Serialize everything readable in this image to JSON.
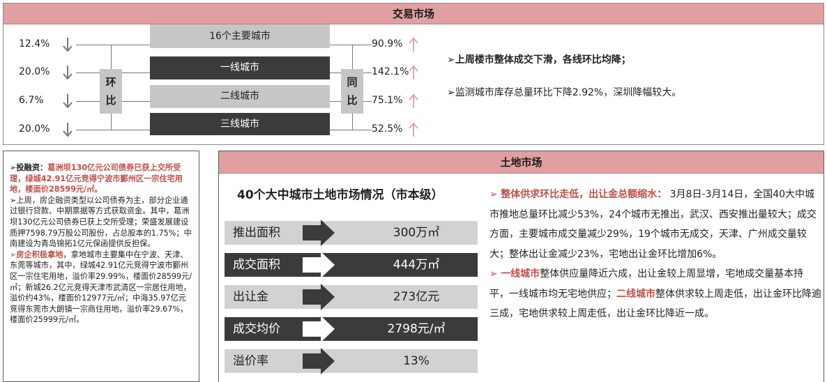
{
  "top": {
    "header": "交易市场",
    "mom_label": [
      "环",
      "比"
    ],
    "yoy_label": [
      "同",
      "比"
    ],
    "rows": [
      {
        "city": "16个主要城市",
        "mom": "12.4%",
        "yoy": "90.9%",
        "style": "light"
      },
      {
        "city": "一线城市",
        "mom": "20.0%",
        "yoy": "142.1%",
        "style": "dark"
      },
      {
        "city": "二线城市",
        "mom": "6.7%",
        "yoy": "75.1%",
        "style": "light"
      },
      {
        "city": "三线城市",
        "mom": "20.0%",
        "yoy": "52.5%",
        "style": "dark"
      }
    ],
    "notes": [
      "➢上周楼市整体成交下滑，各线环比均降；",
      "➢监测城市库存总量环比下降2.92%，深圳降幅较大。"
    ]
  },
  "news": {
    "p1_prefix": "➢投融资：",
    "p1_red": "葛洲坝130亿元公司债券已获上交所受理，绿城42.91亿元竞得宁波市鄞州区一宗住宅用地，楼面价28599元/㎡。",
    "p2": "➢上周，房企融资类型以公司债券为主，部分企业通过银行贷款、中期票据等方式获取资金。其中，葛洲坝130亿元公司债券已获上交所受理；荣盛发展建设质押7598.79万股公司股份，占总股本的1.75%；中南建设为青岛锦拓1亿元保函提供反担保。",
    "p3_red": "➢房企积极拿地",
    "p3": "，拿地城市主要集中在宁波、天津、东莞等城市，其中，绿城42.91亿元竞得宁波市鄞州区一宗住宅用地，溢价率29.99%，楼面价28599元/㎡；新城26.2亿元竞得天津市武清区一宗居住用地，溢价约43%，楼面价12977元/㎡；中海35.97亿元竞得东莞市大朗镇一宗商住用地，溢价率29.67%，楼面价25999元/㎡。"
  },
  "land": {
    "header": "土地市场",
    "title": "40个大中城市土地市场情况（市本级）",
    "rows": [
      {
        "label": "推出面积",
        "value": "300万㎡",
        "style": "light"
      },
      {
        "label": "成交面积",
        "value": "444万㎡",
        "style": "dark"
      },
      {
        "label": "出让金",
        "value": "273亿元",
        "style": "light"
      },
      {
        "label": "成交均价",
        "value": "2798元/㎡",
        "style": "dark"
      },
      {
        "label": "溢价率",
        "value": "13%",
        "style": "light"
      }
    ],
    "bullet": "➢",
    "p1_red": "整体供求环比走低，出让金总额缩水：",
    "p1": "3月8日-3月14日，全国40大中城市推地总量环比减少53%，24个城市无推出，武汉、西安推出量较大；成交方面，主要城市成交量减少29%，19个城市无成交，天津、广州成交量较大；整体出让金减少23%，宅地出让金环比增加6%。",
    "p2_red": "一线城市",
    "p2": "整体供应量降近六成，出让金较上周显增，宅地成交量基本持平，一线城市均无宅地供应；",
    "p2_red2": "二线城市",
    "p2b": "整体供求较上周走低，出让金环比降逾三成，宅地供求较上周走低，出让金环比降近一成。"
  }
}
